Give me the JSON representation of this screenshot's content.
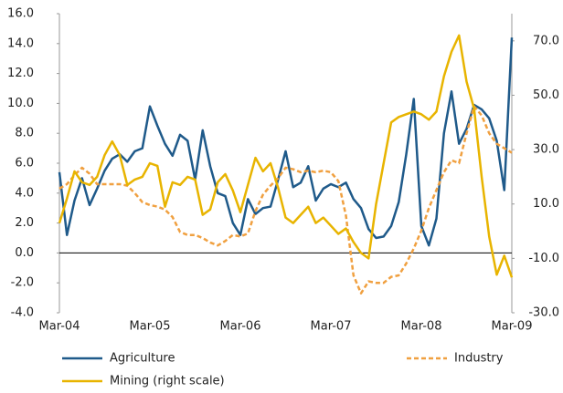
{
  "chart_data": {
    "type": "line",
    "categories": [
      "Mar-04",
      null,
      null,
      null,
      null,
      null,
      null,
      null,
      null,
      null,
      null,
      null,
      "Mar-05",
      null,
      null,
      null,
      null,
      null,
      null,
      null,
      null,
      null,
      null,
      null,
      "Mar-06",
      null,
      null,
      null,
      null,
      null,
      null,
      null,
      null,
      null,
      null,
      null,
      "Mar-07",
      null,
      null,
      null,
      null,
      null,
      null,
      null,
      null,
      null,
      null,
      null,
      "Mar-08",
      null,
      null,
      null,
      null,
      null,
      null,
      null,
      null,
      null,
      null,
      null,
      "Mar-09"
    ],
    "series": [
      {
        "name": "Agriculture",
        "color": "#1f5a8a",
        "style": "solid",
        "axis": "y",
        "values": [
          5.4,
          1.2,
          3.5,
          5.0,
          3.2,
          4.3,
          5.5,
          6.3,
          6.6,
          6.1,
          6.8,
          7.0,
          9.8,
          8.5,
          7.3,
          6.5,
          7.9,
          7.5,
          4.9,
          8.2,
          5.8,
          4.0,
          3.8,
          2.0,
          1.2,
          3.6,
          2.6,
          3.0,
          3.1,
          4.9,
          6.8,
          4.4,
          4.7,
          5.8,
          3.5,
          4.3,
          4.6,
          4.4,
          4.7,
          3.6,
          3.0,
          1.6,
          1.0,
          1.1,
          1.8,
          3.4,
          6.6,
          10.3,
          1.8,
          0.5,
          2.3,
          8.0,
          10.8,
          7.3,
          8.3,
          9.9,
          9.6,
          9.0,
          7.5,
          4.2,
          14.4
        ]
      },
      {
        "name": "Industry",
        "color": "#f0a040",
        "style": "dashed",
        "axis": "y",
        "values": [
          4.3,
          4.6,
          5.2,
          5.7,
          5.3,
          4.6,
          4.6,
          4.6,
          4.6,
          4.5,
          4.0,
          3.4,
          3.2,
          3.1,
          2.9,
          2.4,
          1.4,
          1.2,
          1.2,
          1.0,
          0.7,
          0.5,
          0.8,
          1.2,
          1.1,
          1.3,
          2.8,
          3.9,
          4.5,
          5.0,
          5.7,
          5.6,
          5.4,
          5.5,
          5.4,
          5.5,
          5.4,
          4.8,
          2.5,
          -1.5,
          -2.7,
          -1.9,
          -2.0,
          -2.0,
          -1.6,
          -1.5,
          -0.7,
          0.3,
          1.5,
          3.0,
          4.2,
          5.4,
          6.2,
          6.0,
          8.0,
          9.8,
          9.2,
          8.0,
          7.3,
          7.0,
          6.7
        ]
      },
      {
        "name": "Mining (right scale)",
        "color": "#e8b400",
        "style": "solid",
        "axis": "y2",
        "values": [
          3,
          12,
          22,
          18,
          17,
          20,
          28,
          33,
          28,
          17,
          19,
          20,
          25,
          24,
          9,
          18,
          17,
          20,
          19,
          6,
          8,
          18,
          21,
          15,
          7,
          17,
          27,
          22,
          25,
          16,
          5,
          3,
          6,
          9,
          3,
          5,
          2,
          -1,
          1,
          -4,
          -8,
          -10,
          10,
          25,
          40,
          42,
          43,
          44,
          43,
          41,
          44,
          57,
          66,
          72,
          55,
          45,
          20,
          -2,
          -16,
          -9,
          -17
        ]
      }
    ],
    "ylim": [
      -4,
      16
    ],
    "yticks": [
      {
        "value": -4,
        "label": "-4.0"
      },
      {
        "value": -2,
        "label": "-2.0"
      },
      {
        "value": 0,
        "label": "0.0"
      },
      {
        "value": 2,
        "label": "2.0"
      },
      {
        "value": 4,
        "label": "4.0"
      },
      {
        "value": 6,
        "label": "6.0"
      },
      {
        "value": 8,
        "label": "8.0"
      },
      {
        "value": 10,
        "label": "10.0"
      },
      {
        "value": 12,
        "label": "12.0"
      },
      {
        "value": 14,
        "label": "14.0"
      },
      {
        "value": 16,
        "label": "16.0"
      }
    ],
    "y2lim": [
      -30,
      80
    ],
    "y2ticks": [
      {
        "value": -30,
        "label": "-30.0"
      },
      {
        "value": -10,
        "label": "-10.0"
      },
      {
        "value": 10,
        "label": "10.0"
      },
      {
        "value": 30,
        "label": "30.0"
      },
      {
        "value": 50,
        "label": "50.0"
      },
      {
        "value": 70,
        "label": "70.0"
      }
    ],
    "grid": false
  }
}
